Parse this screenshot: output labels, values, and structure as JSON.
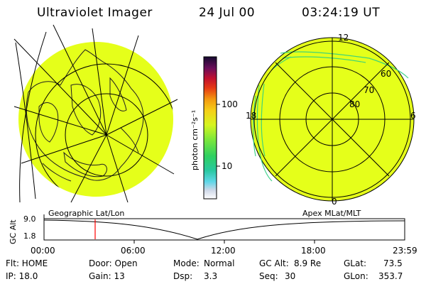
{
  "header": {
    "instrument": "Ultraviolet Imager",
    "date": "24 Jul 00",
    "time": "03:24:19 UT"
  },
  "colorbar": {
    "unit_label": "photon cm⁻²s⁻¹",
    "ticks": [
      "100",
      "10"
    ]
  },
  "left_map": {
    "label": "Geographic Lat/Lon"
  },
  "right_map": {
    "label": "Apex MLat/MLT",
    "mlt_labels": {
      "top": "12",
      "left": "18",
      "right": "6",
      "bottom": "0"
    },
    "lat_labels": [
      "60",
      "70",
      "80"
    ]
  },
  "altitude_plot": {
    "ylabel": "GC Alt",
    "y_ticks": [
      "9.0",
      "1.8"
    ],
    "x_ticks": [
      "00:00",
      "06:00",
      "12:00",
      "18:00",
      "23:59"
    ]
  },
  "status": {
    "flt": "Flt: HOME",
    "ip": "IP: 18.0",
    "door": "Door: Open",
    "gain": "Gain: 13",
    "mode_label": "Mode:",
    "mode_value": "Normal",
    "dsp_label": "Dsp:",
    "dsp_value": "3.3",
    "gcalt_label": "GC Alt:",
    "gcalt_value": "8.9 Re",
    "seq_label": "Seq:",
    "seq_value": "30",
    "glat_label": "GLat:",
    "glat_value": "73.5",
    "glon_label": "GLon:",
    "glon_value": "353.7"
  },
  "colors": {
    "image_fill": "#e5ff1a",
    "cursor": "#ff0000"
  }
}
